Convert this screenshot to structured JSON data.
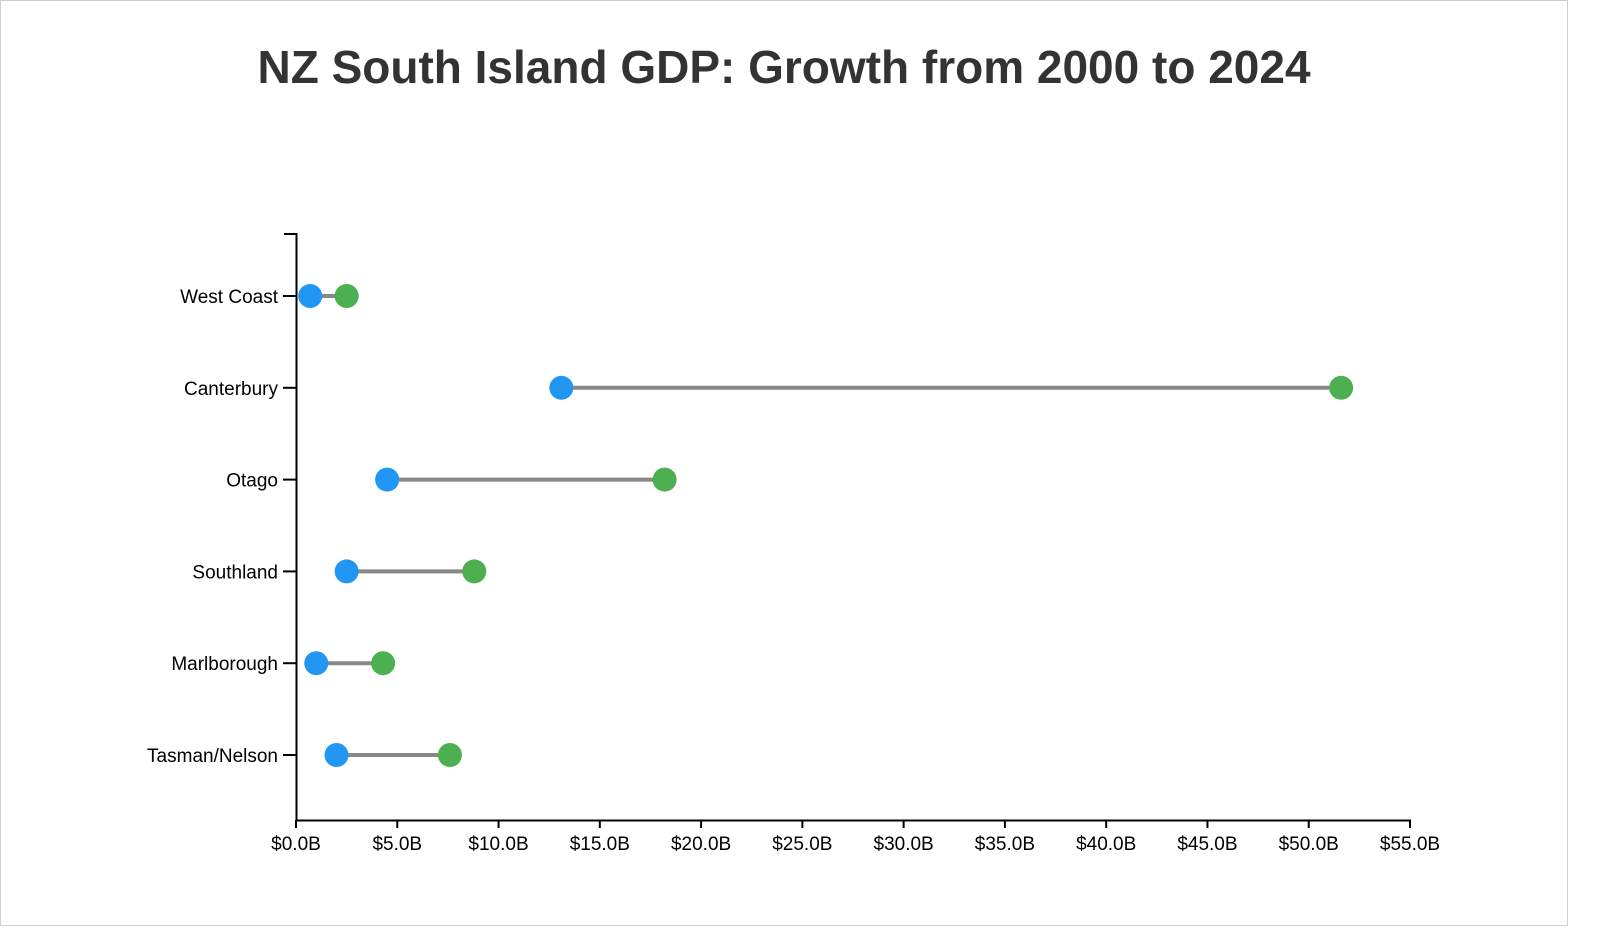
{
  "chart_data": {
    "type": "dumbbell",
    "title": "NZ South Island GDP: Growth from 2000 to 2024",
    "xlabel": "",
    "ylabel": "",
    "xlim": [
      0,
      55
    ],
    "x_ticks": [
      "$0.0B",
      "$5.0B",
      "$10.0B",
      "$15.0B",
      "$20.0B",
      "$25.0B",
      "$30.0B",
      "$35.0B",
      "$40.0B",
      "$45.0B",
      "$50.0B",
      "$55.0B"
    ],
    "x_tick_values": [
      0,
      5,
      10,
      15,
      20,
      25,
      30,
      35,
      40,
      45,
      50,
      55
    ],
    "categories": [
      "West Coast",
      "Canterbury",
      "Otago",
      "Southland",
      "Marlborough",
      "Tasman/Nelson"
    ],
    "series": [
      {
        "color": "#2196f3",
        "values": [
          0.7,
          13.1,
          4.5,
          2.5,
          1.0,
          2.0
        ]
      },
      {
        "color": "#4caf50",
        "values": [
          2.5,
          51.6,
          18.2,
          8.8,
          4.3,
          7.6
        ]
      }
    ],
    "connector_color": "#888888",
    "grid": false,
    "legend": "none"
  }
}
